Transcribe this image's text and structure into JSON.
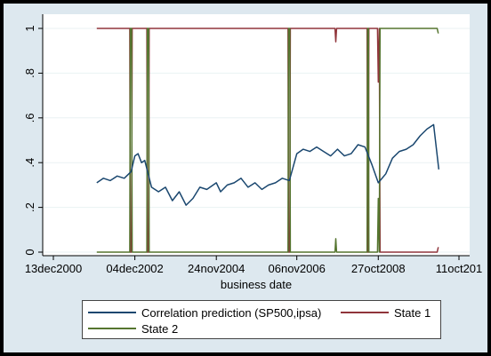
{
  "chart_data": {
    "type": "line",
    "xlabel": "business date",
    "ylabel": "",
    "xlim": [
      "2000-12-13",
      "2010-10-11"
    ],
    "ylim": [
      0,
      1
    ],
    "x_tick_labels": [
      "13dec2000",
      "04dec2002",
      "24nov2004",
      "06nov2006",
      "27oct2008",
      "11oct201"
    ],
    "x_tick_dates": [
      "2000-12-13",
      "2002-12-04",
      "2004-11-24",
      "2006-11-06",
      "2008-10-27",
      "2010-10-11"
    ],
    "y_tick_labels": [
      "0",
      ".2",
      ".4",
      ".6",
      ".8",
      "1"
    ],
    "y_ticks": [
      0,
      0.2,
      0.4,
      0.6,
      0.8,
      1
    ],
    "grid": "horizontal",
    "legend_position": "bottom",
    "series": [
      {
        "name": "Correlation prediction (SP500,ipsa)",
        "color": "#1a476f",
        "x": [
          "2002-01-01",
          "2002-03-01",
          "2002-05-01",
          "2002-07-01",
          "2002-09-01",
          "2002-11-01",
          "2002-12-04",
          "2003-01-01",
          "2003-02-01",
          "2003-03-01",
          "2003-05-01",
          "2003-07-01",
          "2003-09-01",
          "2003-11-01",
          "2004-01-01",
          "2004-03-01",
          "2004-05-01",
          "2004-07-01",
          "2004-09-01",
          "2004-11-24",
          "2005-01-01",
          "2005-03-01",
          "2005-05-01",
          "2005-07-01",
          "2005-09-01",
          "2005-11-01",
          "2006-01-01",
          "2006-03-01",
          "2006-05-01",
          "2006-07-01",
          "2006-09-01",
          "2006-11-06",
          "2007-01-01",
          "2007-03-01",
          "2007-05-01",
          "2007-07-01",
          "2007-09-01",
          "2007-11-01",
          "2008-01-01",
          "2008-03-01",
          "2008-05-01",
          "2008-07-01",
          "2008-09-01",
          "2008-10-27",
          "2009-01-01",
          "2009-03-01",
          "2009-05-01",
          "2009-07-01",
          "2009-09-01",
          "2009-11-01",
          "2010-01-01",
          "2010-03-01",
          "2010-04-15"
        ],
        "y": [
          0.31,
          0.33,
          0.32,
          0.34,
          0.33,
          0.36,
          0.43,
          0.44,
          0.4,
          0.41,
          0.29,
          0.27,
          0.29,
          0.23,
          0.27,
          0.21,
          0.24,
          0.29,
          0.28,
          0.31,
          0.27,
          0.3,
          0.31,
          0.33,
          0.29,
          0.31,
          0.28,
          0.3,
          0.31,
          0.33,
          0.32,
          0.44,
          0.46,
          0.45,
          0.47,
          0.45,
          0.43,
          0.46,
          0.43,
          0.44,
          0.48,
          0.47,
          0.39,
          0.31,
          0.35,
          0.42,
          0.45,
          0.46,
          0.48,
          0.52,
          0.55,
          0.57,
          0.37
        ]
      },
      {
        "name": "State 1",
        "color": "#90353b",
        "x": [
          "2002-01-01",
          "2002-10-20",
          "2002-10-25",
          "2002-11-05",
          "2002-11-10",
          "2003-03-20",
          "2003-03-25",
          "2003-04-05",
          "2003-04-10",
          "2006-08-20",
          "2006-08-25",
          "2006-09-05",
          "2006-09-10",
          "2007-10-10",
          "2007-10-17",
          "2007-10-24",
          "2008-07-20",
          "2008-07-25",
          "2008-08-01",
          "2008-08-05",
          "2008-10-20",
          "2008-10-27",
          "2008-11-05",
          "2008-11-12",
          "2008-11-20",
          "2010-04-01",
          "2010-04-10",
          "2010-04-15"
        ],
        "y": [
          1,
          1,
          0,
          0,
          1,
          1,
          0,
          0,
          1,
          1,
          0,
          0,
          1,
          1,
          0.94,
          1,
          1,
          0,
          0,
          1,
          1,
          0.76,
          1,
          0,
          0,
          0,
          0.02,
          0.02
        ]
      },
      {
        "name": "State 2",
        "color": "#55752f",
        "x": [
          "2002-01-01",
          "2002-10-20",
          "2002-10-25",
          "2002-11-05",
          "2002-11-10",
          "2003-03-20",
          "2003-03-25",
          "2003-04-05",
          "2003-04-10",
          "2006-08-20",
          "2006-08-25",
          "2006-09-05",
          "2006-09-10",
          "2007-10-10",
          "2007-10-17",
          "2007-10-24",
          "2008-07-20",
          "2008-07-25",
          "2008-08-01",
          "2008-08-05",
          "2008-10-20",
          "2008-10-27",
          "2008-11-05",
          "2008-11-12",
          "2008-11-20",
          "2010-04-01",
          "2010-04-10",
          "2010-04-15"
        ],
        "y": [
          0,
          0,
          1,
          1,
          0,
          0,
          1,
          1,
          0,
          0,
          1,
          1,
          0,
          0,
          0.06,
          0,
          0,
          1,
          1,
          0,
          0,
          0.24,
          0,
          1,
          1,
          1,
          0.98,
          0.98
        ]
      }
    ]
  }
}
